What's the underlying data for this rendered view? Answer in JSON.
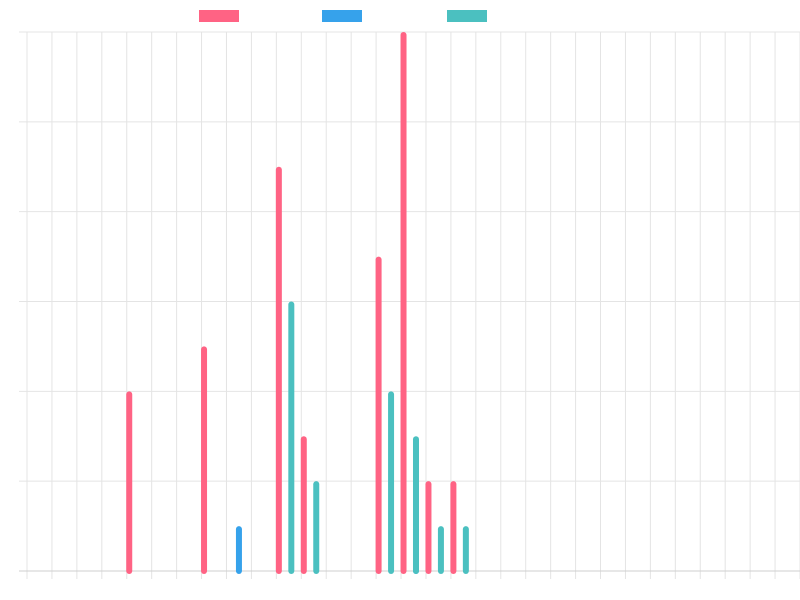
{
  "chart_data": {
    "type": "bar",
    "title": "",
    "xlabel": "",
    "ylabel": "",
    "grid": true,
    "legend": "top-left",
    "x_slots": 31,
    "ylim": [
      0,
      12
    ],
    "series": [
      {
        "color": "#ff6384",
        "points": [
          {
            "x": 4.1,
            "y": 4
          },
          {
            "x": 7.1,
            "y": 5
          },
          {
            "x": 10.1,
            "y": 9
          },
          {
            "x": 11.1,
            "y": 3
          },
          {
            "x": 14.1,
            "y": 7
          },
          {
            "x": 15.1,
            "y": 12
          },
          {
            "x": 16.1,
            "y": 2
          },
          {
            "x": 17.1,
            "y": 2
          }
        ]
      },
      {
        "color": "#36a2eb",
        "points": [
          {
            "x": 8.5,
            "y": 1
          },
          {
            "x": 15.6,
            "y": 1
          }
        ]
      },
      {
        "color": "#4bc0c0",
        "points": [
          {
            "x": 10.6,
            "y": 6
          },
          {
            "x": 11.6,
            "y": 2
          },
          {
            "x": 14.6,
            "y": 4
          },
          {
            "x": 15.6,
            "y": 3
          },
          {
            "x": 16.6,
            "y": 1
          },
          {
            "x": 17.6,
            "y": 1
          }
        ]
      }
    ]
  }
}
